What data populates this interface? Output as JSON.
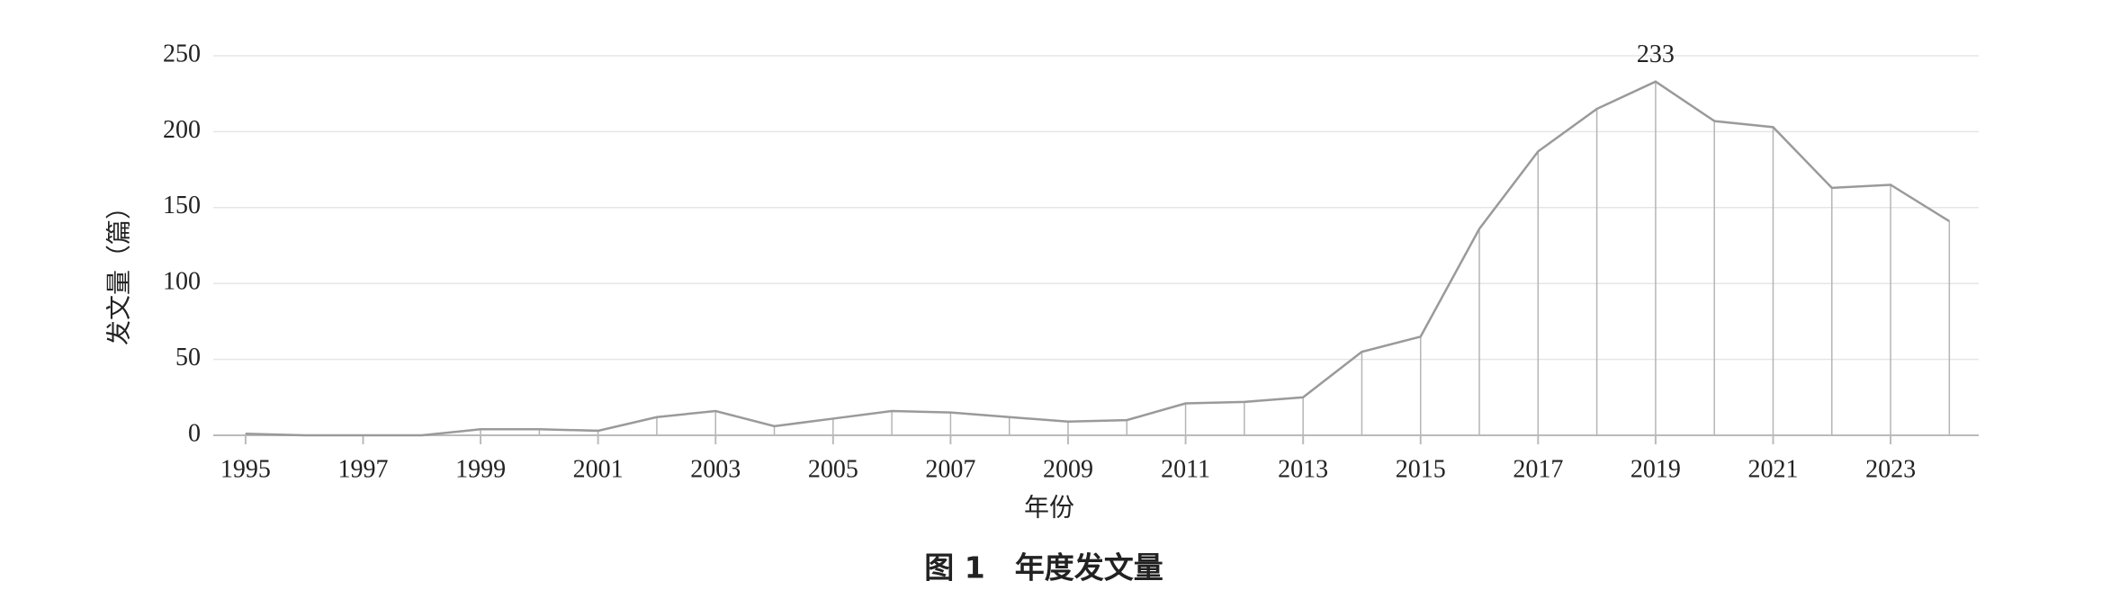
{
  "chart_data": {
    "type": "line",
    "ylabel": "发文量（篇）",
    "xlabel": "年份",
    "caption": "图 1　年度发文量",
    "x": [
      1995,
      1996,
      1997,
      1998,
      1999,
      2000,
      2001,
      2002,
      2003,
      2004,
      2005,
      2006,
      2007,
      2008,
      2009,
      2010,
      2011,
      2012,
      2013,
      2014,
      2015,
      2016,
      2017,
      2018,
      2019,
      2020,
      2021,
      2022,
      2023,
      2024
    ],
    "values": [
      1,
      0,
      0,
      0,
      4,
      4,
      3,
      12,
      16,
      6,
      11,
      16,
      15,
      12,
      9,
      10,
      21,
      22,
      25,
      55,
      65,
      136,
      187,
      215,
      233,
      207,
      203,
      163,
      165,
      141
    ],
    "value_labels": [
      null,
      null,
      null,
      null,
      null,
      null,
      null,
      null,
      null,
      null,
      null,
      null,
      null,
      null,
      null,
      null,
      null,
      null,
      null,
      null,
      null,
      null,
      null,
      null,
      "233",
      null,
      null,
      null,
      null,
      null
    ],
    "color": "#9a9a9a",
    "drop_lines": true,
    "xlim": [
      1994.45,
      2024.5
    ],
    "xticks": [
      1995,
      1997,
      1999,
      2001,
      2003,
      2005,
      2007,
      2009,
      2011,
      2013,
      2015,
      2017,
      2019,
      2021,
      2023
    ],
    "ylim": [
      0,
      250
    ],
    "yticks": [
      0,
      50,
      100,
      150,
      200,
      250
    ],
    "grid": true
  }
}
